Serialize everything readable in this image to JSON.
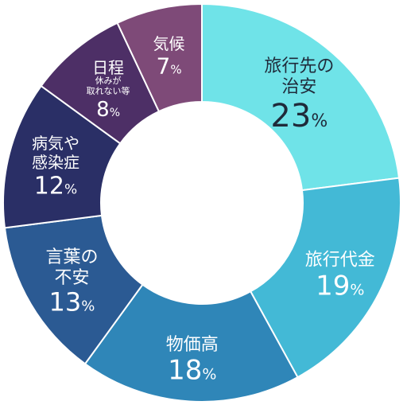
{
  "chart_data": {
    "type": "pie",
    "donut": true,
    "unit": "%",
    "slices": [
      {
        "label": [
          "旅行先の",
          "治安"
        ],
        "value": 23,
        "color": "#6fe3e8",
        "text_color": "#1f2a3a"
      },
      {
        "label": [
          "旅行代金"
        ],
        "value": 19,
        "color": "#43b9d6",
        "text_color": "#ffffff"
      },
      {
        "label": [
          "物価高"
        ],
        "value": 18,
        "color": "#2f86b8",
        "text_color": "#ffffff"
      },
      {
        "label": [
          "言葉の",
          "不安"
        ],
        "value": 13,
        "color": "#2b5a93",
        "text_color": "#ffffff"
      },
      {
        "label": [
          "病気や",
          "感染症"
        ],
        "value": 12,
        "color": "#2a2f66",
        "text_color": "#ffffff"
      },
      {
        "label": [
          "日程"
        ],
        "sublabel": [
          "休みが",
          "取れない等"
        ],
        "value": 8,
        "color": "#4d2f66",
        "text_color": "#ffffff"
      },
      {
        "label": [
          "気候"
        ],
        "value": 7,
        "color": "#7e4a78",
        "text_color": "#ffffff"
      }
    ]
  }
}
